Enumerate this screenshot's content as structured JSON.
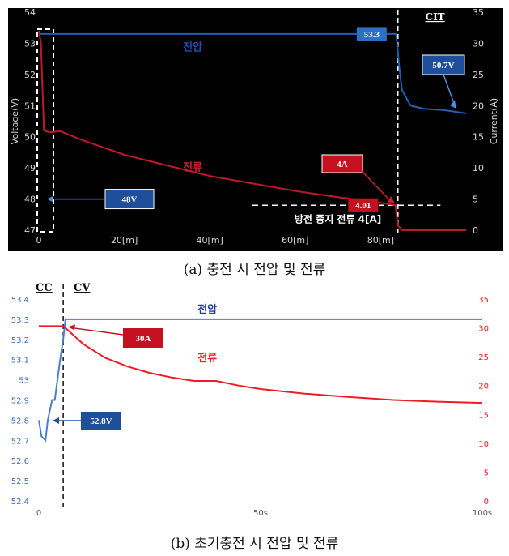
{
  "chart_data": [
    {
      "type": "line",
      "caption": "(a) 충전 시 전압 및 전류",
      "ylabel": "Voltage(V)",
      "y2label": "Current(A)",
      "ylim": [
        47,
        54
      ],
      "y2lim": [
        0,
        35
      ],
      "xlim": [
        0,
        100
      ],
      "y_ticks": [
        "47",
        "48",
        "49",
        "50",
        "51",
        "52",
        "53",
        "54"
      ],
      "y2_ticks": [
        "0",
        "5",
        "10",
        "15",
        "20",
        "25",
        "30",
        "35"
      ],
      "x_ticks": [
        {
          "value": 0,
          "label": "0"
        },
        {
          "value": 20,
          "label": "20[m]"
        },
        {
          "value": 40,
          "label": "40[m]"
        },
        {
          "value": 60,
          "label": "60[m]"
        },
        {
          "value": 80,
          "label": "80[m]"
        }
      ],
      "background": "#000000",
      "series": [
        {
          "name": "전압",
          "axis": "left",
          "color": "#1f5fb8",
          "points": [
            [
              0,
              53.3
            ],
            [
              83.5,
              53.3
            ],
            [
              83.7,
              53.25
            ],
            [
              84.3,
              52.3
            ],
            [
              85,
              51.5
            ],
            [
              87,
              51.0
            ],
            [
              90,
              50.9
            ],
            [
              95,
              50.85
            ],
            [
              100,
              50.75
            ]
          ]
        },
        {
          "name": "전류",
          "axis": "right",
          "color": "#c0182a",
          "points": [
            [
              0,
              32
            ],
            [
              0.5,
              30
            ],
            [
              1.2,
              16
            ],
            [
              2.5,
              15.7
            ],
            [
              5,
              15.9
            ],
            [
              10,
              14.5
            ],
            [
              20,
              12.1
            ],
            [
              30,
              10.4
            ],
            [
              40,
              8.7
            ],
            [
              50,
              7.5
            ],
            [
              60,
              6.3
            ],
            [
              70,
              5.3
            ],
            [
              80,
              4.4
            ],
            [
              83.5,
              4.0
            ],
            [
              84,
              0.8
            ],
            [
              85,
              0
            ],
            [
              100,
              0
            ]
          ]
        }
      ],
      "annotations": {
        "voltage_label": "전압",
        "current_label": "전류",
        "v_end_box": "53.3",
        "v_min_box": "48V",
        "v_cit_box": "50.7V",
        "i_stop_box": "4A",
        "i_end_box": "4.01",
        "stop_line_label": "방전 종지 전류 4[A]",
        "stop_line_value": 4,
        "cit_label": "CIT",
        "cit_line_x": 84
      }
    },
    {
      "type": "line",
      "caption": "(b) 초기충전 시 전압 및 전류",
      "ylim": [
        52.4,
        53.4
      ],
      "y2lim": [
        0,
        35
      ],
      "xlim": [
        0,
        100
      ],
      "y_ticks": [
        "52.4",
        "52.5",
        "52.6",
        "52.7",
        "52.8",
        "52.9",
        "53",
        "53.1",
        "53.2",
        "53.3",
        "53.4"
      ],
      "y2_ticks": [
        "0",
        "5",
        "10",
        "15",
        "20",
        "25",
        "30",
        "35"
      ],
      "x_ticks": [
        {
          "value": 0,
          "label": "0"
        },
        {
          "value": 50,
          "label": "50s"
        },
        {
          "value": 100,
          "label": "100s"
        }
      ],
      "background": "#ffffff",
      "series": [
        {
          "name": "전압",
          "axis": "left",
          "color": "#4a7fd0",
          "points": [
            [
              0,
              52.8
            ],
            [
              0.6,
              52.72
            ],
            [
              1.5,
              52.7
            ],
            [
              2,
              52.8
            ],
            [
              3,
              52.9
            ],
            [
              3.6,
              52.9
            ],
            [
              4.2,
              53.0
            ],
            [
              4.8,
              53.1
            ],
            [
              5.5,
              53.2
            ],
            [
              6,
              53.3
            ],
            [
              100,
              53.3
            ]
          ]
        },
        {
          "name": "전류",
          "axis": "right",
          "color": "#ee1c24",
          "points": [
            [
              0,
              30.3
            ],
            [
              5.5,
              30.3
            ],
            [
              6,
              30.0
            ],
            [
              10,
              27.2
            ],
            [
              15,
              24.8
            ],
            [
              20,
              23.3
            ],
            [
              25,
              22.2
            ],
            [
              30,
              21.4
            ],
            [
              35,
              20.8
            ],
            [
              40,
              20.8
            ],
            [
              45,
              20.0
            ],
            [
              50,
              19.4
            ],
            [
              60,
              18.6
            ],
            [
              70,
              18.0
            ],
            [
              80,
              17.5
            ],
            [
              90,
              17.2
            ],
            [
              100,
              17.0
            ]
          ]
        }
      ],
      "annotations": {
        "voltage_label": "전압",
        "current_label": "전류",
        "i_box": "30A",
        "v_box": "52.8V",
        "cc_label": "CC",
        "cv_label": "CV",
        "cv_line_x": 5.5
      }
    }
  ]
}
